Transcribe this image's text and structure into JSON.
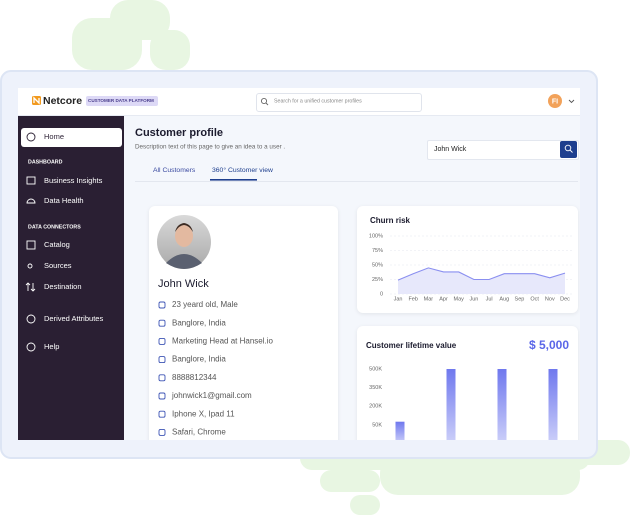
{
  "header": {
    "logo": "Netcore",
    "badge": "CUSTOMER DATA PLATFORM",
    "search_placeholder": "Search for a unified customer profiles",
    "avatar": "FI"
  },
  "sidebar": {
    "home": "Home",
    "sections": [
      {
        "title": "DASHBOARD",
        "items": [
          "Business Insights",
          "Data Health"
        ]
      },
      {
        "title": "DATA CONNECTORS",
        "items": [
          "Catalog",
          "Sources",
          "Destination"
        ]
      }
    ],
    "extra": [
      "Derived Attributes",
      "Help"
    ]
  },
  "page": {
    "title": "Customer profile",
    "description": "Description text of this page to give an idea to a user .",
    "search_value": "John Wick",
    "tabs": [
      "All Customers",
      "360° Customer view"
    ],
    "active_tab": 1
  },
  "profile": {
    "name": "John Wick",
    "details": [
      "23 yeard old, Male",
      "Banglore, India",
      "Marketing Head at Hansel.io",
      "Banglore, India",
      "8888812344",
      "johnwick1@gmail.com",
      "Iphone X, Ipad 11",
      "Safari, Chrome"
    ]
  },
  "chart_data": [
    {
      "type": "line",
      "title": "Churn risk",
      "categories": [
        "Jan",
        "Feb",
        "Mar",
        "Apr",
        "May",
        "Jun",
        "Jul",
        "Aug",
        "Sep",
        "Oct",
        "Nov",
        "Dec"
      ],
      "values": [
        24,
        35,
        45,
        38,
        38,
        25,
        25,
        35,
        35,
        35,
        28,
        36
      ],
      "color": "#8a8ff0",
      "fill": "#e7e8fb",
      "ylim": [
        0,
        100
      ],
      "yticks": [
        0,
        {
          "value": 25,
          "label": "25%"
        },
        {
          "value": 50,
          "label": "50%"
        },
        {
          "value": 75,
          "label": "75%"
        },
        {
          "value": 100,
          "label": "100%"
        }
      ],
      "grid": true
    },
    {
      "type": "bar",
      "title": "Customer lifetime value",
      "summary": "$ 5,000",
      "categories": [
        null,
        null,
        null,
        null
      ],
      "values": [
        75000,
        500000,
        500000,
        500000
      ],
      "color": "#6f78ee",
      "ylim": [
        0,
        500000
      ],
      "yticks": [
        {
          "value": 50000,
          "label": "50K"
        },
        {
          "value": 200000,
          "label": "200K"
        },
        {
          "value": 350000,
          "label": "350K"
        },
        {
          "value": 500000,
          "label": "500K"
        }
      ],
      "grid": false
    }
  ]
}
